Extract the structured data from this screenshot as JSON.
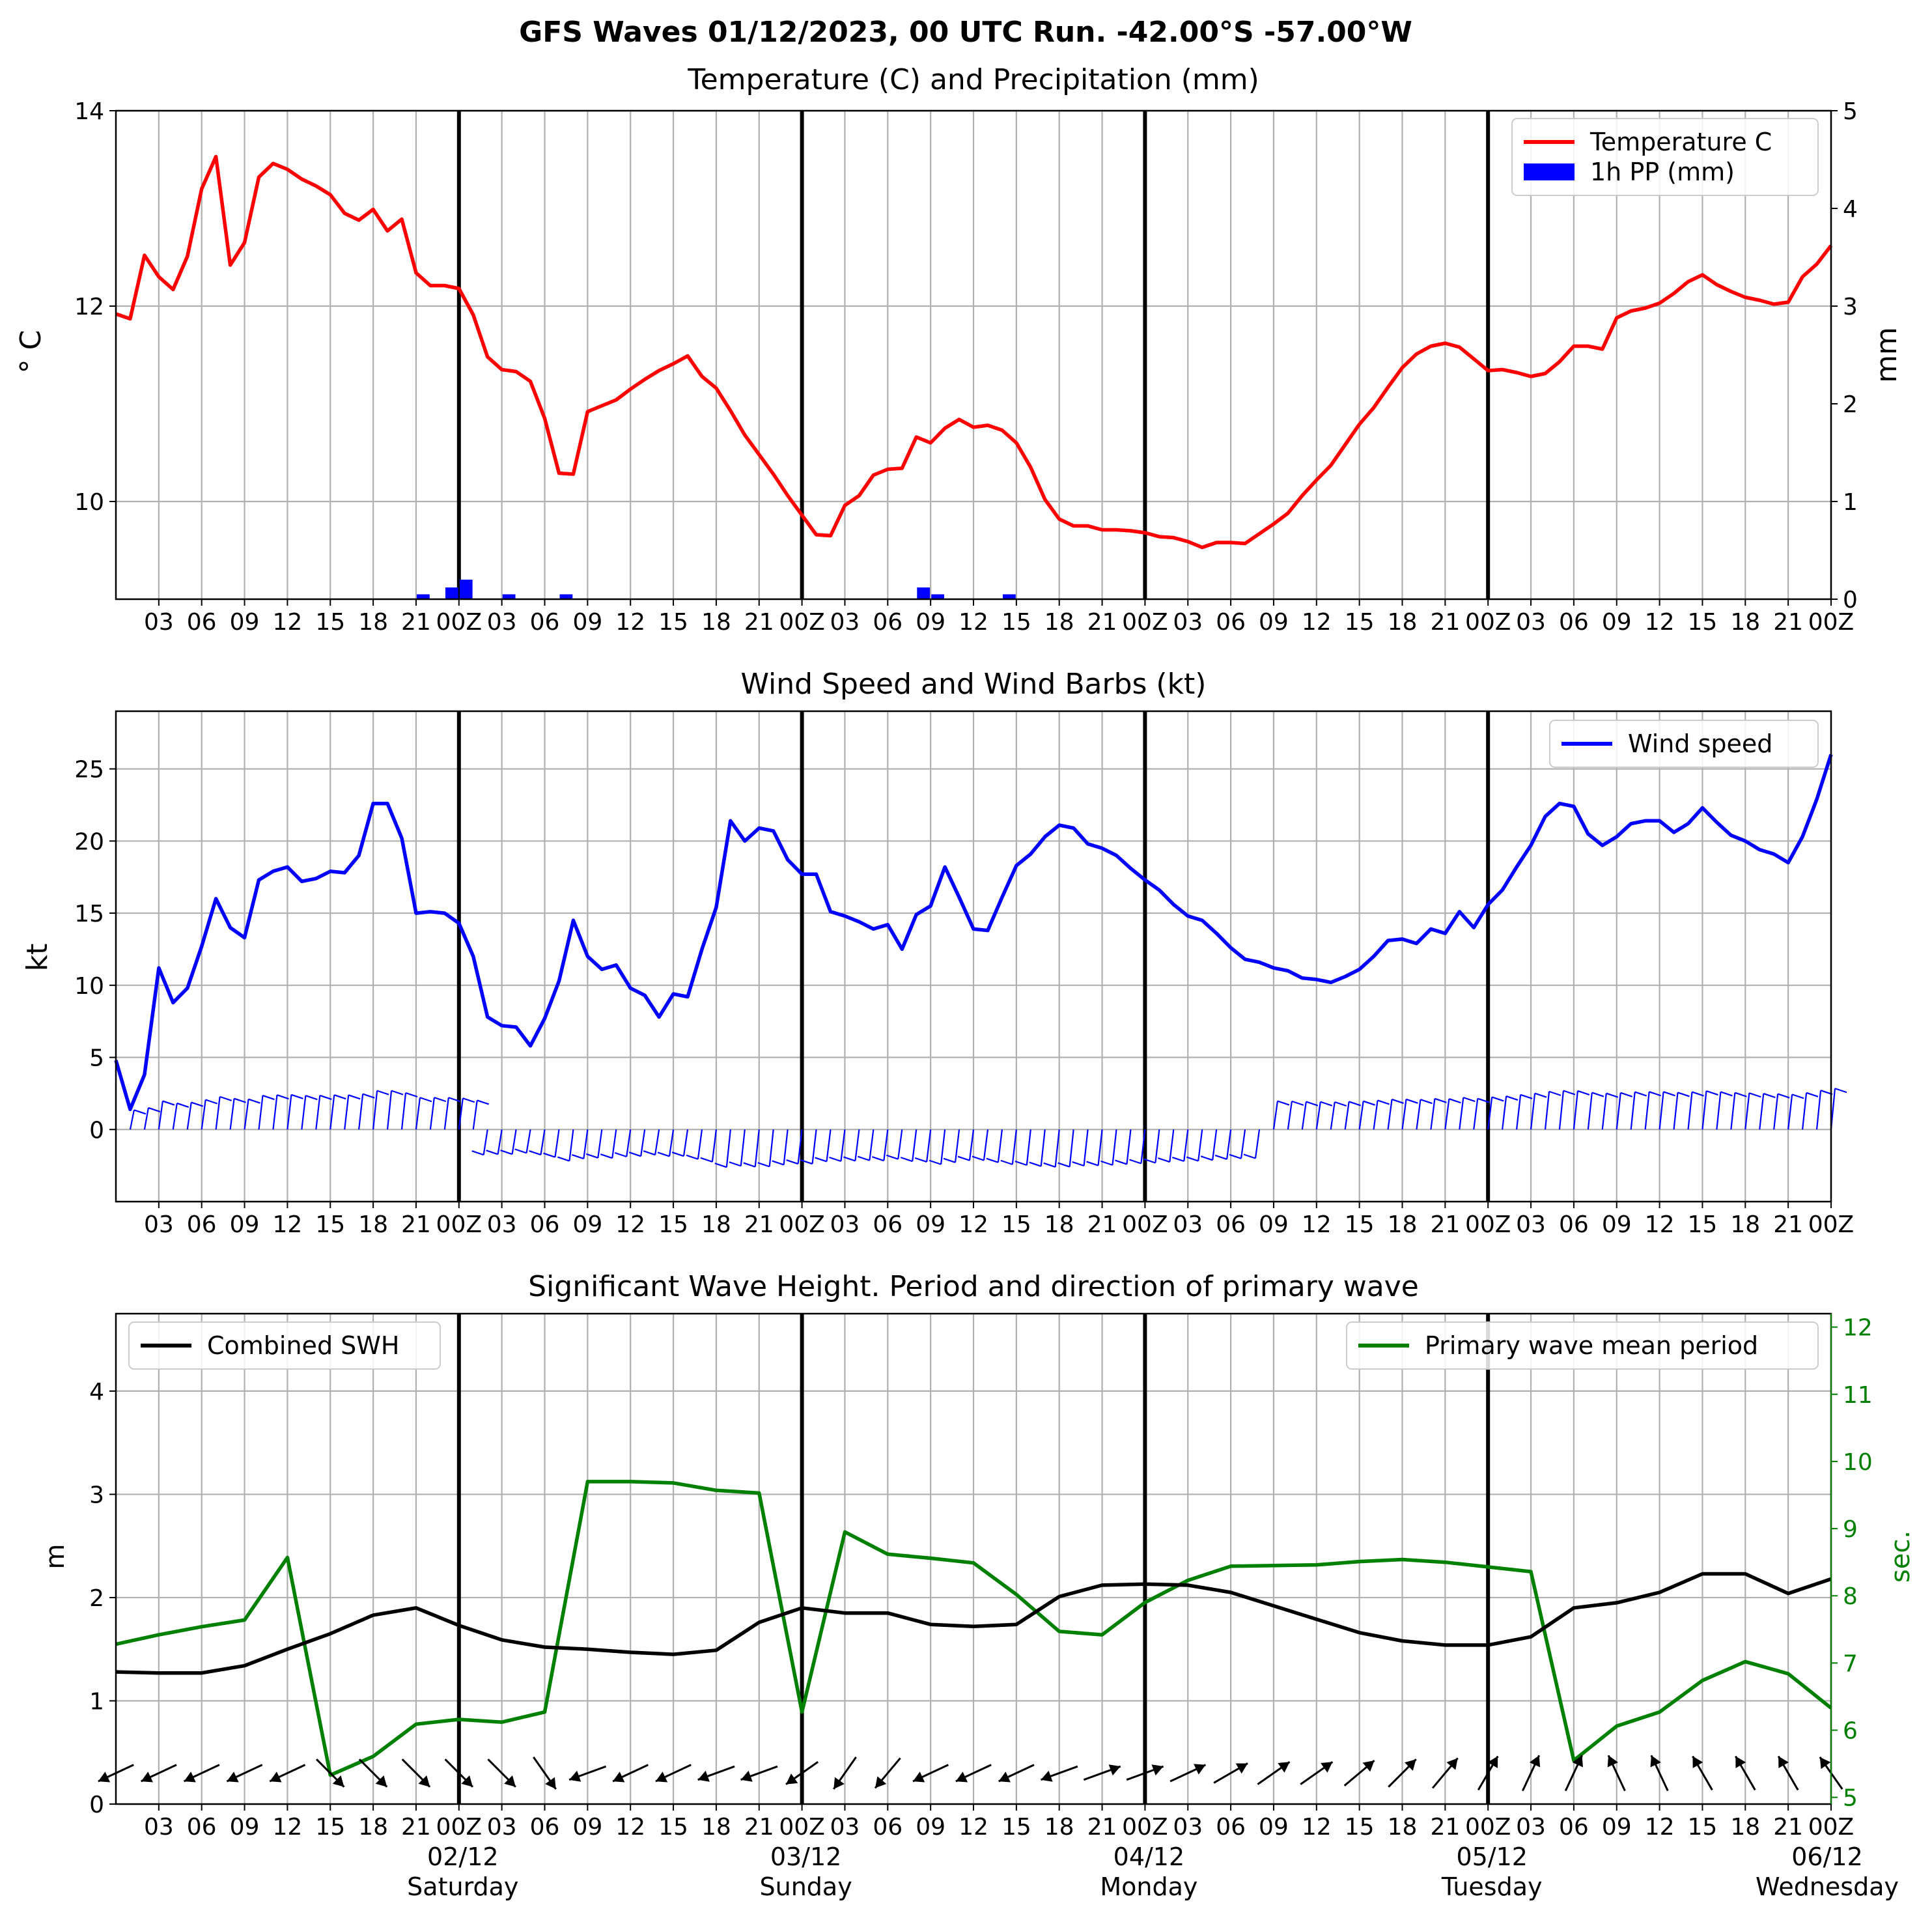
{
  "figure": {
    "suptitle": "GFS Waves 01/12/2023, 00 UTC Run. -42.00°S -57.00°W"
  },
  "x_axis": {
    "range_hours": [
      0,
      120
    ],
    "tick_labels": [
      "03",
      "06",
      "09",
      "12",
      "15",
      "18",
      "21",
      "00Z",
      "03",
      "06",
      "09",
      "12",
      "15",
      "18",
      "21",
      "00Z",
      "03",
      "06",
      "09",
      "12",
      "15",
      "18",
      "21",
      "00Z",
      "03",
      "06",
      "09",
      "12",
      "15",
      "18",
      "21",
      "00Z",
      "03",
      "06",
      "09",
      "12",
      "15",
      "18",
      "21",
      "00Z"
    ],
    "day_markers_hours": [
      24,
      48,
      72,
      96
    ],
    "day_labels": [
      {
        "date": "02/12",
        "weekday": "Saturday"
      },
      {
        "date": "03/12",
        "weekday": "Sunday"
      },
      {
        "date": "04/12",
        "weekday": "Monday"
      },
      {
        "date": "05/12",
        "weekday": "Tuesday"
      },
      {
        "date": "06/12",
        "weekday": "Wednesday"
      }
    ]
  },
  "chart_data": [
    {
      "type": "line",
      "title": "Temperature (C) and Precipitation (mm)",
      "ylabel": "° C",
      "y2label": "mm",
      "ylim": [
        9,
        14
      ],
      "y_ticks": [
        10,
        12,
        14
      ],
      "y2lim": [
        0,
        5
      ],
      "y2_ticks": [
        0,
        1,
        2,
        3,
        4,
        5
      ],
      "grid": true,
      "legend": "top-right",
      "series": [
        {
          "name": "Temperature C",
          "axis": "left",
          "color": "#ff0000",
          "x": [
            0,
            1,
            2,
            3,
            4,
            5,
            6,
            7,
            8,
            9,
            10,
            11,
            12,
            13,
            14,
            15,
            16,
            17,
            18,
            19,
            20,
            21,
            22,
            23,
            24,
            25,
            26,
            27,
            28,
            29,
            30,
            31,
            32,
            33,
            34,
            35,
            36,
            37,
            38,
            39,
            40,
            41,
            42,
            43,
            44,
            45,
            46,
            47,
            48,
            49,
            50,
            51,
            52,
            53,
            54,
            55,
            56,
            57,
            58,
            59,
            60,
            61,
            62,
            63,
            64,
            65,
            66,
            67,
            68,
            69,
            70,
            71,
            72,
            73,
            74,
            75,
            76,
            77,
            78,
            79,
            80,
            81,
            82,
            83,
            84,
            85,
            86,
            87,
            88,
            89,
            90,
            91,
            92,
            93,
            94,
            95,
            96,
            97,
            98,
            99,
            100,
            101,
            102,
            103,
            104,
            105,
            106,
            107,
            108,
            109,
            110,
            111,
            112,
            113,
            114,
            115,
            116,
            117,
            118,
            119,
            120
          ],
          "values": [
            11.92,
            11.87,
            12.52,
            12.3,
            12.17,
            12.51,
            13.2,
            13.53,
            12.42,
            12.65,
            13.32,
            13.46,
            13.4,
            13.3,
            13.23,
            13.14,
            12.95,
            12.88,
            12.99,
            12.77,
            12.89,
            12.34,
            12.21,
            12.21,
            12.18,
            11.91,
            11.48,
            11.35,
            11.33,
            11.23,
            10.85,
            10.29,
            10.28,
            10.92,
            10.98,
            11.04,
            11.15,
            11.25,
            11.34,
            11.41,
            11.49,
            11.28,
            11.16,
            10.93,
            10.68,
            10.48,
            10.28,
            10.06,
            9.86,
            9.66,
            9.65,
            9.96,
            10.06,
            10.27,
            10.33,
            10.34,
            10.66,
            10.6,
            10.75,
            10.84,
            10.76,
            10.78,
            10.73,
            10.6,
            10.35,
            10.02,
            9.82,
            9.75,
            9.75,
            9.71,
            9.71,
            9.7,
            9.68,
            9.64,
            9.63,
            9.59,
            9.53,
            9.58,
            9.58,
            9.57,
            9.67,
            9.77,
            9.88,
            10.06,
            10.22,
            10.37,
            10.58,
            10.79,
            10.96,
            11.17,
            11.37,
            11.51,
            11.59,
            11.62,
            11.58,
            11.46,
            11.34,
            11.35,
            11.32,
            11.28,
            11.31,
            11.43,
            11.59,
            11.59,
            11.56,
            11.88,
            11.95,
            11.98,
            12.03,
            12.13,
            12.25,
            12.32,
            12.22,
            12.15,
            12.09,
            12.06,
            12.02,
            12.04,
            12.3,
            12.43,
            12.62
          ]
        },
        {
          "name": "1h PP (mm)",
          "axis": "right",
          "type": "bar",
          "color": "#0000ff",
          "x": [
            21.5,
            23.5,
            24.5,
            27.5,
            31.5,
            56.5,
            57.5,
            62.5
          ],
          "values": [
            0.05,
            0.12,
            0.2,
            0.05,
            0.05,
            0.12,
            0.05,
            0.05
          ]
        }
      ]
    },
    {
      "type": "line",
      "title": "Wind Speed and Wind Barbs (kt)",
      "ylabel": "kt",
      "ylim": [
        -5,
        29
      ],
      "y_ticks": [
        0,
        5,
        10,
        15,
        20,
        25
      ],
      "grid": true,
      "legend": "top-right",
      "series": [
        {
          "name": "Wind speed",
          "color": "#0000ff",
          "x": [
            0,
            1,
            2,
            3,
            4,
            5,
            6,
            7,
            8,
            9,
            10,
            11,
            12,
            13,
            14,
            15,
            16,
            17,
            18,
            19,
            20,
            21,
            22,
            23,
            24,
            25,
            26,
            27,
            28,
            29,
            30,
            31,
            32,
            33,
            34,
            35,
            36,
            37,
            38,
            39,
            40,
            41,
            42,
            43,
            44,
            45,
            46,
            47,
            48,
            49,
            50,
            51,
            52,
            53,
            54,
            55,
            56,
            57,
            58,
            59,
            60,
            61,
            62,
            63,
            64,
            65,
            66,
            67,
            68,
            69,
            70,
            71,
            72,
            73,
            74,
            75,
            76,
            77,
            78,
            79,
            80,
            81,
            82,
            83,
            84,
            85,
            86,
            87,
            88,
            89,
            90,
            91,
            92,
            93,
            94,
            95,
            96,
            97,
            98,
            99,
            100,
            101,
            102,
            103,
            104,
            105,
            106,
            107,
            108,
            109,
            110,
            111,
            112,
            113,
            114,
            115,
            116,
            117,
            118,
            119,
            120
          ],
          "values": [
            4.8,
            1.4,
            3.8,
            11.2,
            8.8,
            9.8,
            12.7,
            16.0,
            14.0,
            13.3,
            17.3,
            17.9,
            18.2,
            17.2,
            17.4,
            17.9,
            17.8,
            19.0,
            22.6,
            22.6,
            20.2,
            15.0,
            15.1,
            15.0,
            14.3,
            12.0,
            7.8,
            7.2,
            7.1,
            5.8,
            7.7,
            10.3,
            14.5,
            12.0,
            11.1,
            11.4,
            9.8,
            9.3,
            7.8,
            9.4,
            9.2,
            12.5,
            15.4,
            21.4,
            20.0,
            20.9,
            20.7,
            18.7,
            17.7,
            17.7,
            15.1,
            14.8,
            14.4,
            13.9,
            14.2,
            12.5,
            14.9,
            15.5,
            18.2,
            16.1,
            13.9,
            13.8,
            16.1,
            18.3,
            19.1,
            20.3,
            21.1,
            20.9,
            19.8,
            19.5,
            19.0,
            18.1,
            17.3,
            16.6,
            15.6,
            14.8,
            14.5,
            13.6,
            12.6,
            11.8,
            11.6,
            11.2,
            11.0,
            10.5,
            10.4,
            10.2,
            10.6,
            11.1,
            12.0,
            13.1,
            13.2,
            12.9,
            13.9,
            13.6,
            15.1,
            14.0,
            15.6,
            16.6,
            18.2,
            19.7,
            21.7,
            22.6,
            22.4,
            20.5,
            19.7,
            20.3,
            21.2,
            21.4,
            21.4,
            20.6,
            21.2,
            22.3,
            21.3,
            20.4,
            20.0,
            19.4,
            19.1,
            18.5,
            20.3,
            22.9,
            26.0
          ]
        }
      ]
    },
    {
      "type": "line",
      "title": "Significant Wave Height. Period and direction of primary wave",
      "ylabel": "m",
      "y2label": "sec.",
      "ylim": [
        0,
        4.75
      ],
      "y_ticks": [
        0,
        1,
        2,
        3,
        4
      ],
      "y2lim": [
        4.9,
        12.2
      ],
      "y2_ticks": [
        5,
        6,
        7,
        8,
        9,
        10,
        11,
        12
      ],
      "grid": true,
      "series": [
        {
          "name": "Combined SWH",
          "axis": "left",
          "color": "#000000",
          "legend": "top-left",
          "x": [
            0,
            3,
            6,
            9,
            12,
            15,
            18,
            21,
            24,
            27,
            30,
            33,
            36,
            39,
            42,
            45,
            48,
            51,
            54,
            57,
            60,
            63,
            66,
            69,
            72,
            75,
            78,
            81,
            84,
            87,
            90,
            93,
            96,
            99,
            102,
            105,
            108,
            111,
            114,
            117,
            120
          ],
          "values": [
            1.28,
            1.27,
            1.27,
            1.34,
            1.5,
            1.65,
            1.83,
            1.9,
            1.73,
            1.59,
            1.52,
            1.5,
            1.47,
            1.45,
            1.49,
            1.76,
            1.9,
            1.85,
            1.85,
            1.74,
            1.72,
            1.74,
            2.01,
            2.12,
            2.13,
            2.12,
            2.05,
            1.92,
            1.79,
            1.66,
            1.58,
            1.54,
            1.54,
            1.62,
            1.9,
            1.95,
            2.05,
            2.23,
            2.23,
            2.04,
            2.18
          ]
        },
        {
          "name": "Primary wave mean period",
          "axis": "right",
          "color": "#008000",
          "legend": "top-right",
          "x": [
            0,
            3,
            6,
            9,
            12,
            15,
            18,
            21,
            24,
            27,
            30,
            33,
            36,
            39,
            42,
            45,
            48,
            51,
            54,
            57,
            60,
            63,
            66,
            69,
            72,
            75,
            78,
            81,
            84,
            87,
            90,
            93,
            96,
            99,
            102,
            105,
            108,
            111,
            114,
            117,
            120
          ],
          "values": [
            7.28,
            7.42,
            7.54,
            7.64,
            8.57,
            5.33,
            5.61,
            6.09,
            6.16,
            6.12,
            6.27,
            9.7,
            9.7,
            9.68,
            9.57,
            9.53,
            6.27,
            8.95,
            8.62,
            8.56,
            8.49,
            8.02,
            7.47,
            7.42,
            7.9,
            8.23,
            8.44,
            8.45,
            8.46,
            8.51,
            8.54,
            8.5,
            8.43,
            8.36,
            5.55,
            6.06,
            6.27,
            6.74,
            7.02,
            6.84,
            6.33
          ]
        }
      ],
      "direction_arrows": {
        "series": "primary wave direction",
        "hours": [
          0,
          3,
          6,
          9,
          12,
          15,
          18,
          21,
          24,
          27,
          30,
          33,
          36,
          39,
          42,
          45,
          48,
          51,
          54,
          57,
          60,
          63,
          66,
          69,
          72,
          75,
          78,
          81,
          84,
          87,
          90,
          93,
          96,
          99,
          102,
          105,
          108,
          111,
          114,
          117,
          120
        ],
        "toward_degrees": [
          245,
          245,
          245,
          245,
          245,
          135,
          135,
          135,
          135,
          135,
          145,
          250,
          245,
          245,
          250,
          250,
          235,
          215,
          220,
          245,
          245,
          245,
          250,
          70,
          70,
          65,
          60,
          55,
          55,
          50,
          45,
          40,
          30,
          25,
          25,
          335,
          335,
          330,
          330,
          330,
          325
        ]
      }
    }
  ]
}
